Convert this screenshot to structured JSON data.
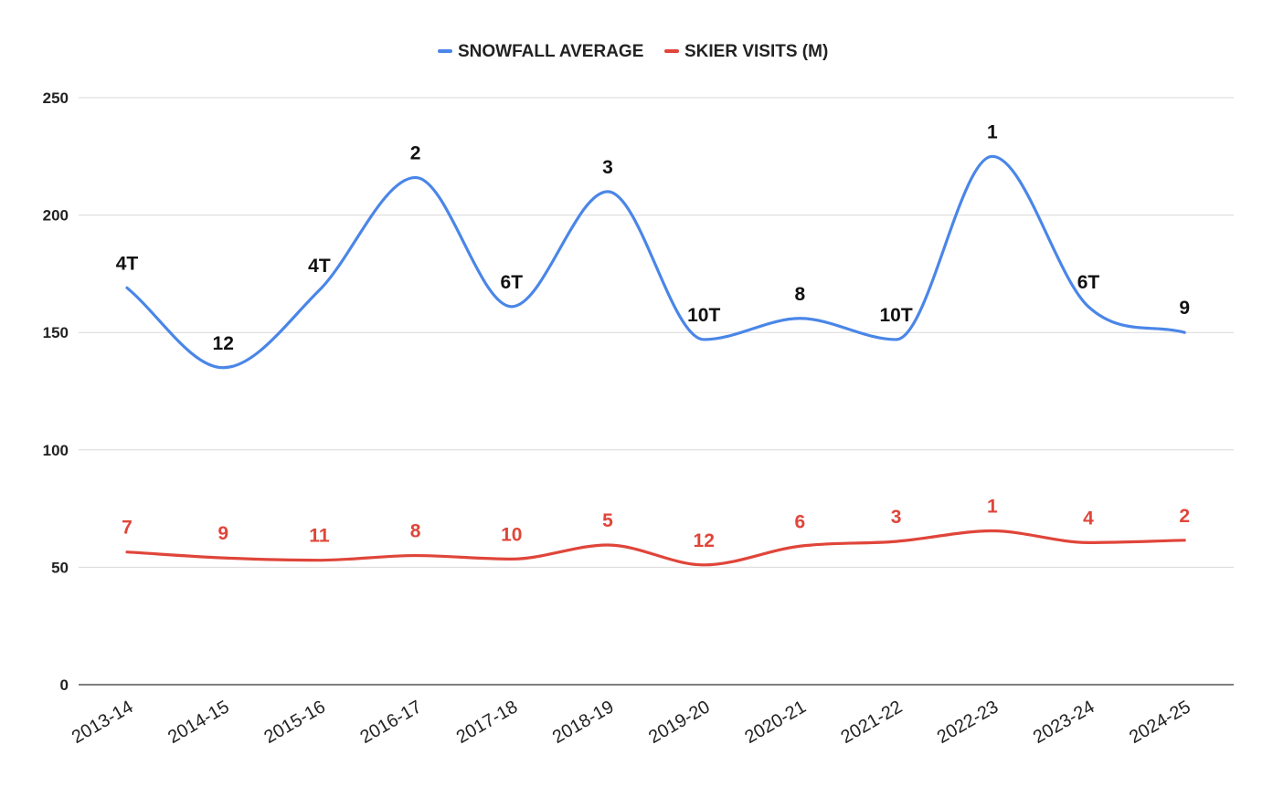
{
  "chart_data": {
    "type": "line",
    "title": "",
    "xlabel": "",
    "ylabel": "",
    "ylim": [
      0,
      250
    ],
    "yticks": [
      0,
      50,
      100,
      150,
      200,
      250
    ],
    "grid": true,
    "legend_position": "top-center",
    "categories": [
      "2013-14",
      "2014-15",
      "2015-16",
      "2016-17",
      "2017-18",
      "2018-19",
      "2019-20",
      "2020-21",
      "2021-22",
      "2022-23",
      "2023-24",
      "2024-25"
    ],
    "series": [
      {
        "name": "SNOWFALL AVERAGE",
        "color": "#4a86e8",
        "label_color": "#111111",
        "values": [
          169,
          135,
          168,
          216,
          161,
          210,
          147,
          156,
          147,
          225,
          161,
          150
        ],
        "labels": [
          "4T",
          "12",
          "4T",
          "2",
          "6T",
          "3",
          "10T",
          "8",
          "10T",
          "1",
          "6T",
          "9"
        ]
      },
      {
        "name": "SKIER VISITS (M)",
        "color": "#e0453a",
        "label_color": "#e0453a",
        "values": [
          56.5,
          54,
          53,
          55,
          53.5,
          59.5,
          51,
          59,
          61,
          65.5,
          60.5,
          61.5
        ],
        "labels": [
          "7",
          "9",
          "11",
          "8",
          "10",
          "5",
          "12",
          "6",
          "3",
          "1",
          "4",
          "2"
        ]
      }
    ]
  }
}
